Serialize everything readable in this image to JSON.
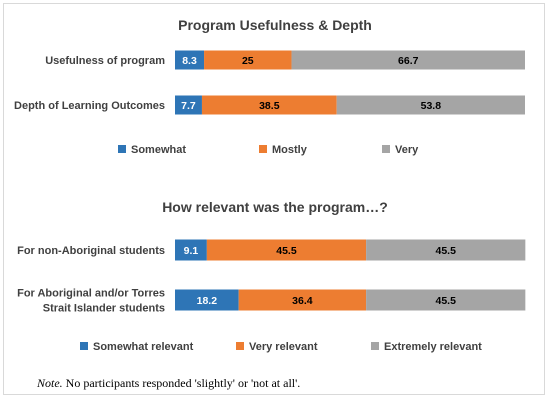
{
  "colors": {
    "somewhat": "#2e75b6",
    "mostly": "#ed7d31",
    "very": "#a5a5a5"
  },
  "chart_data": [
    {
      "type": "bar",
      "orientation": "horizontal",
      "stacked": true,
      "title": "Program Usefulness & Depth",
      "categories": [
        "Usefulness of program",
        "Depth of Learning Outcomes"
      ],
      "series": [
        {
          "name": "Somewhat",
          "values": [
            8.3,
            7.7
          ]
        },
        {
          "name": "Mostly",
          "values": [
            25,
            38.5
          ]
        },
        {
          "name": "Very",
          "values": [
            66.7,
            53.8
          ]
        }
      ],
      "xlim": [
        0,
        100
      ],
      "legend": "bottom"
    },
    {
      "type": "bar",
      "orientation": "horizontal",
      "stacked": true,
      "title": "How relevant was the program…?",
      "categories": [
        "For non-Aboriginal students",
        "For Aboriginal and/or Torres Strait Islander students"
      ],
      "series": [
        {
          "name": "Somewhat relevant",
          "values": [
            9.1,
            18.2
          ]
        },
        {
          "name": "Very relevant",
          "values": [
            45.5,
            36.4
          ]
        },
        {
          "name": "Extremely relevant",
          "values": [
            45.5,
            45.5
          ]
        }
      ],
      "xlim": [
        0,
        100
      ],
      "legend": "bottom"
    }
  ],
  "note": {
    "label": "Note.",
    "text": "No participants responded 'slightly' or 'not at all'."
  }
}
